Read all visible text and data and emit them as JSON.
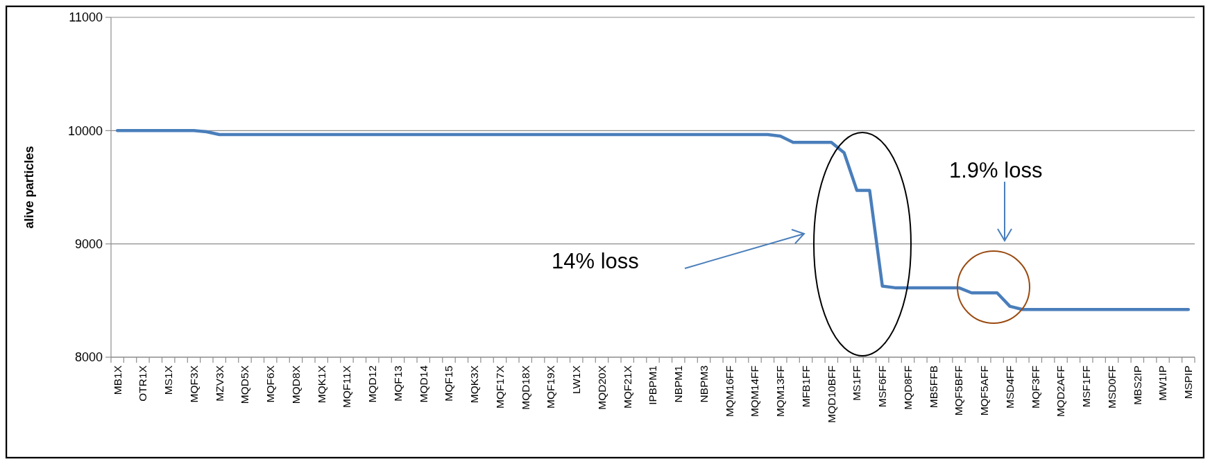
{
  "chart_data": {
    "type": "line",
    "ylabel": "alive particles",
    "categories": [
      "MB1X",
      null,
      "OTR1X",
      null,
      "MS1X",
      null,
      "MQF3X",
      null,
      "MZV3X",
      null,
      "MQD5X",
      null,
      "MQF6X",
      null,
      "MQD8X",
      null,
      "MQK1X",
      null,
      "MQF11X",
      null,
      "MQD12",
      null,
      "MQF13",
      null,
      "MQD14",
      null,
      "MQF15",
      null,
      "MQK3X",
      null,
      "MQF17X",
      null,
      "MQD18X",
      null,
      "MQF19X",
      null,
      "LW1X",
      null,
      "MQD20X",
      null,
      "MQF21X",
      null,
      "IPBPM1",
      null,
      "NBPM1",
      null,
      "NBPM3",
      null,
      "MQM16FF",
      null,
      "MQM14FF",
      null,
      "MQM13FF",
      null,
      "MFB1FF",
      null,
      "MQD10BFF",
      null,
      "MS1FF",
      null,
      "MSF6FF",
      null,
      "MQD8FF",
      null,
      "MB5FFB",
      null,
      "MQF5BFF",
      null,
      "MQF5AFF",
      null,
      "MSD4FF",
      null,
      "MQF3FF",
      null,
      "MQD2AFF",
      null,
      "MSF1FF",
      null,
      "MSD0FF",
      null,
      "MBS2IP",
      null,
      "MW1IP",
      null,
      "MSPIP"
    ],
    "series": [
      {
        "color": "#4a7ebb",
        "values": [
          10000,
          10000,
          10000,
          10000,
          10000,
          10000,
          10000,
          9990,
          9965,
          9965,
          9965,
          9965,
          9965,
          9965,
          9965,
          9965,
          9965,
          9965,
          9965,
          9965,
          9965,
          9965,
          9965,
          9965,
          9965,
          9965,
          9965,
          9965,
          9965,
          9965,
          9965,
          9965,
          9965,
          9965,
          9965,
          9965,
          9965,
          9965,
          9965,
          9965,
          9965,
          9965,
          9965,
          9965,
          9965,
          9965,
          9965,
          9965,
          9965,
          9965,
          9965,
          9965,
          9952,
          9897,
          9897,
          9897,
          9897,
          9805,
          9473,
          9473,
          8627,
          8613,
          8613,
          8613,
          8613,
          8613,
          8613,
          8568,
          8568,
          8568,
          8449,
          8421,
          8421,
          8421,
          8421,
          8421,
          8421,
          8421,
          8421,
          8421,
          8421,
          8421,
          8421,
          8421,
          8421
        ]
      }
    ],
    "ylim": [
      8000,
      11000
    ],
    "yticks": [
      8000,
      9000,
      10000,
      11000
    ],
    "grid": "y",
    "marker": "none",
    "line_style": "solid",
    "annotations": [
      "14% loss",
      "1.9% loss"
    ]
  }
}
